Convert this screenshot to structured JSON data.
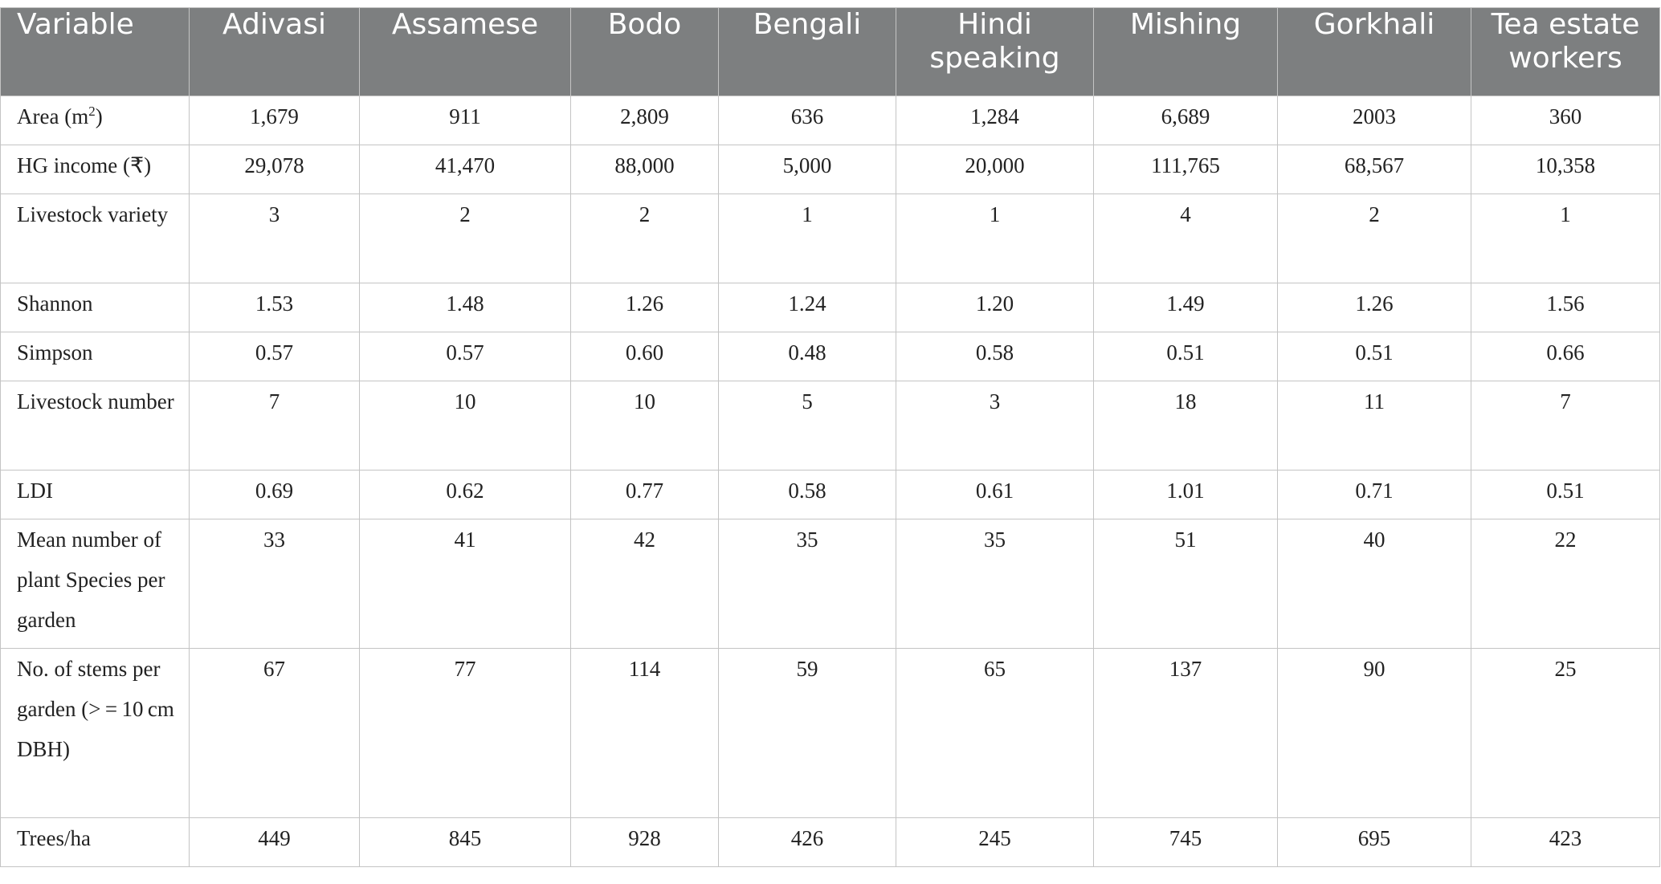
{
  "columns": [
    "Variable",
    "Adivasi",
    "Assamese",
    "Bodo",
    "Bengali",
    "Hindi speaking",
    "Mishing",
    "Gorkhali",
    "Tea estate workers"
  ],
  "rows": [
    {
      "label_pre": "Area (m",
      "label_sup": "2",
      "label_post": ")",
      "values": [
        "1,679",
        "911",
        "2,809",
        "636",
        "1,284",
        "6,689",
        "2003",
        "360"
      ]
    },
    {
      "label": "HG income (₹)",
      "values": [
        "29,078",
        "41,470",
        "88,000",
        "5,000",
        "20,000",
        "111,765",
        "68,567",
        "10,358"
      ]
    },
    {
      "label": "Livestock variety",
      "values": [
        "3",
        "2",
        "2",
        "1",
        "1",
        "4",
        "2",
        "1"
      ]
    },
    {
      "label": "Shannon",
      "values": [
        "1.53",
        "1.48",
        "1.26",
        "1.24",
        "1.20",
        "1.49",
        "1.26",
        "1.56"
      ]
    },
    {
      "label": "Simpson",
      "values": [
        "0.57",
        "0.57",
        "0.60",
        "0.48",
        "0.58",
        "0.51",
        "0.51",
        "0.66"
      ]
    },
    {
      "label": "Livestock number",
      "values": [
        "7",
        "10",
        "10",
        "5",
        "3",
        "18",
        "11",
        "7"
      ]
    },
    {
      "label": "LDI",
      "values": [
        "0.69",
        "0.62",
        "0.77",
        "0.58",
        "0.61",
        "1.01",
        "0.71",
        "0.51"
      ]
    },
    {
      "label": "Mean number of plant Species per garden",
      "values": [
        "33",
        "41",
        "42",
        "35",
        "35",
        "51",
        "40",
        "22"
      ]
    },
    {
      "label": "No. of stems per garden (> = 10 cm DBH)",
      "values": [
        "67",
        "77",
        "114",
        "59",
        "65",
        "137",
        "90",
        "25"
      ]
    },
    {
      "label": "Trees/ha",
      "values": [
        "449",
        "845",
        "928",
        "426",
        "245",
        "745",
        "695",
        "423"
      ]
    }
  ]
}
